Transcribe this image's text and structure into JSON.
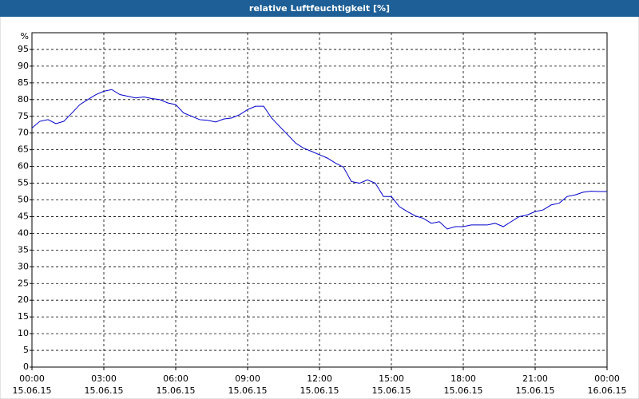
{
  "chart_data": {
    "type": "line",
    "title": "relative Luftfeuchtigkeit [%]",
    "y_unit": "%",
    "x": [
      0,
      0.33,
      0.67,
      1,
      1.33,
      1.67,
      2,
      2.33,
      2.67,
      3,
      3.33,
      3.67,
      4,
      4.33,
      4.67,
      5,
      5.33,
      5.67,
      6,
      6.33,
      6.67,
      7,
      7.33,
      7.67,
      8,
      8.33,
      8.67,
      9,
      9.33,
      9.67,
      10,
      10.33,
      10.67,
      11,
      11.33,
      11.67,
      12,
      12.33,
      12.67,
      13,
      13.33,
      13.67,
      14,
      14.33,
      14.67,
      15,
      15.33,
      15.67,
      16,
      16.33,
      16.67,
      17,
      17.33,
      17.67,
      18,
      18.33,
      18.67,
      19,
      19.33,
      19.67,
      20,
      20.33,
      20.67,
      21,
      21.33,
      21.67,
      22,
      22.33,
      22.67,
      23,
      23.33,
      23.67,
      24
    ],
    "series": [
      {
        "name": "relative Luftfeuchtigkeit",
        "color": "#0000cc",
        "values": [
          71.5,
          73.5,
          74,
          72.8,
          73.5,
          76,
          78.5,
          80,
          81.5,
          82.5,
          83,
          81.5,
          81,
          80.5,
          80.8,
          80.3,
          80,
          79,
          78.5,
          76,
          75,
          74,
          73.8,
          73.3,
          74.2,
          74.5,
          75.5,
          77,
          78,
          78,
          74.5,
          72,
          69.5,
          67,
          65.5,
          64.5,
          63.5,
          62.5,
          61,
          59.8,
          55.5,
          55,
          56,
          55,
          51,
          51,
          48,
          46.5,
          45.2,
          44.5,
          43,
          43.5,
          41.3,
          42,
          42,
          42.5,
          42.5,
          42.5,
          43,
          42,
          43.5,
          45,
          45.5,
          46.5,
          47,
          48.5,
          49,
          51,
          51.5,
          52.3,
          52.6,
          52.5,
          52.5
        ]
      }
    ],
    "xlim": [
      0,
      24
    ],
    "xticks": [
      {
        "value": 0,
        "label": "00:00\n15.06.15"
      },
      {
        "value": 3,
        "label": "03:00\n15.06.15"
      },
      {
        "value": 6,
        "label": "06:00\n15.06.15"
      },
      {
        "value": 9,
        "label": "09:00\n15.06.15"
      },
      {
        "value": 12,
        "label": "12:00\n15.06.15"
      },
      {
        "value": 15,
        "label": "15:00\n15.06.15"
      },
      {
        "value": 18,
        "label": "18:00\n15.06.15"
      },
      {
        "value": 21,
        "label": "21:00\n15.06.15"
      },
      {
        "value": 24,
        "label": "00:00\n16.06.15"
      }
    ],
    "ylim": [
      0,
      100
    ],
    "yticks": [
      0,
      5,
      10,
      15,
      20,
      25,
      30,
      35,
      40,
      45,
      50,
      55,
      60,
      65,
      70,
      75,
      80,
      85,
      90,
      95
    ],
    "grid": true
  }
}
